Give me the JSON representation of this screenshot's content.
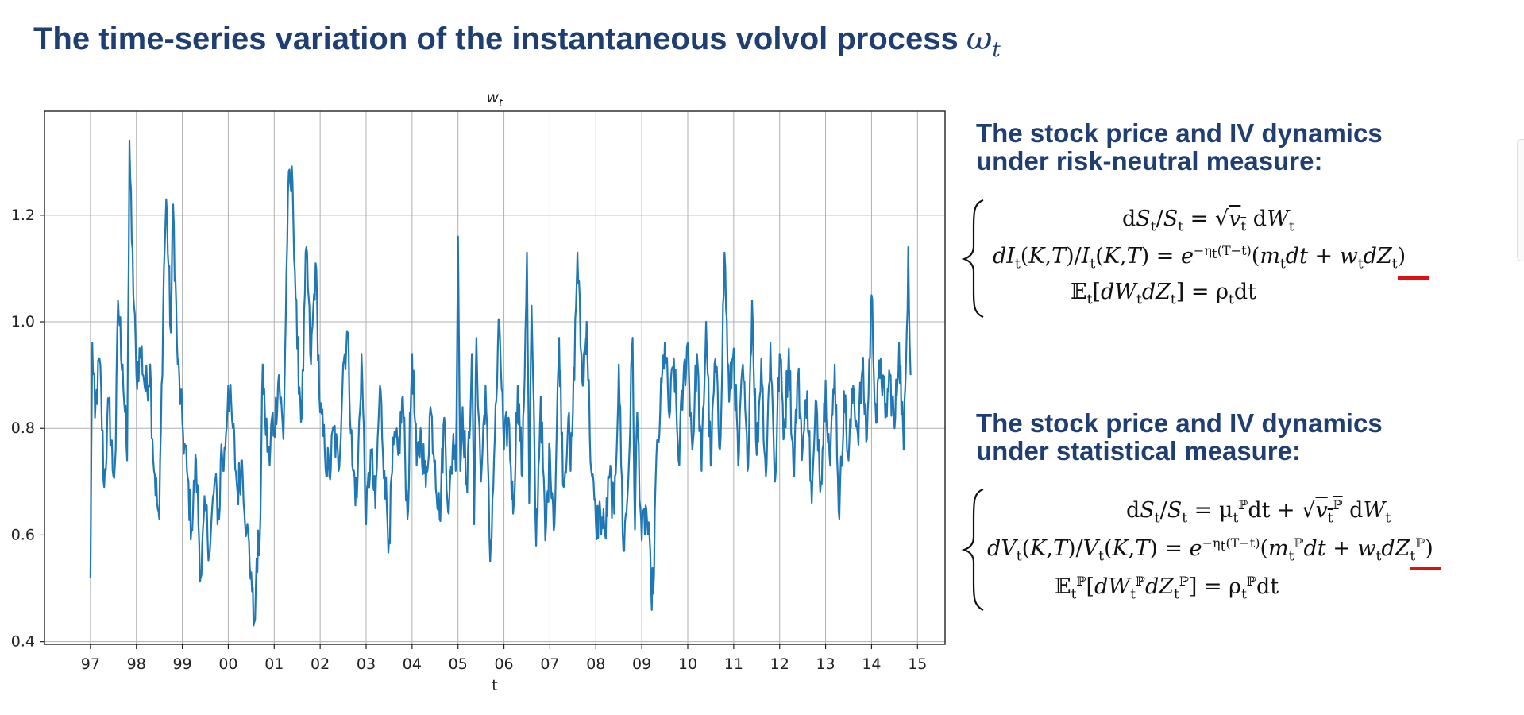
{
  "slide": {
    "title": "The time-series variation of the instantaneous volvol process",
    "title_symbol": "ω",
    "title_symbol_sub": "t"
  },
  "chart_data": {
    "type": "line",
    "title": "w_t",
    "title_display": "w",
    "title_sub": "t",
    "xlabel": "t",
    "ylabel": "",
    "ylim": [
      0.395,
      1.395
    ],
    "xlim": [
      1996.0,
      2015.6
    ],
    "yticks": [
      "0.4",
      "0.6",
      "0.8",
      "1.0",
      "1.2"
    ],
    "xticks": [
      "97",
      "98",
      "99",
      "00",
      "01",
      "02",
      "03",
      "04",
      "05",
      "06",
      "07",
      "08",
      "09",
      "10",
      "11",
      "12",
      "13",
      "14",
      "15"
    ],
    "grid": true,
    "legend": "none",
    "color": "#1f77b4",
    "series": [
      {
        "anchors": [
          [
            1997.0,
            0.52
          ],
          [
            1997.04,
            0.96
          ],
          [
            1997.1,
            0.82
          ],
          [
            1997.2,
            0.93
          ],
          [
            1997.3,
            0.69
          ],
          [
            1997.4,
            0.85
          ],
          [
            1997.5,
            0.71
          ],
          [
            1997.55,
            0.76
          ],
          [
            1997.6,
            1.04
          ],
          [
            1997.7,
            0.92
          ],
          [
            1997.8,
            0.74
          ],
          [
            1997.85,
            1.34
          ],
          [
            1997.9,
            1.15
          ],
          [
            1998.0,
            0.9
          ],
          [
            1998.1,
            0.95
          ],
          [
            1998.2,
            0.87
          ],
          [
            1998.3,
            0.92
          ],
          [
            1998.35,
            0.78
          ],
          [
            1998.45,
            0.66
          ],
          [
            1998.5,
            0.63
          ],
          [
            1998.6,
            1.1
          ],
          [
            1998.65,
            1.23
          ],
          [
            1998.75,
            0.98
          ],
          [
            1998.8,
            1.22
          ],
          [
            1998.9,
            0.92
          ],
          [
            1999.0,
            0.81
          ],
          [
            1999.1,
            0.72
          ],
          [
            1999.2,
            0.61
          ],
          [
            1999.3,
            0.74
          ],
          [
            1999.4,
            0.52
          ],
          [
            1999.5,
            0.65
          ],
          [
            1999.6,
            0.57
          ],
          [
            1999.7,
            0.7
          ],
          [
            1999.8,
            0.63
          ],
          [
            1999.85,
            0.77
          ],
          [
            1999.9,
            0.72
          ],
          [
            2000.0,
            0.88
          ],
          [
            2000.1,
            0.8
          ],
          [
            2000.2,
            0.68
          ],
          [
            2000.3,
            0.74
          ],
          [
            2000.4,
            0.61
          ],
          [
            2000.5,
            0.53
          ],
          [
            2000.55,
            0.43
          ],
          [
            2000.6,
            0.5
          ],
          [
            2000.7,
            0.63
          ],
          [
            2000.75,
            0.92
          ],
          [
            2000.8,
            0.82
          ],
          [
            2000.9,
            0.73
          ],
          [
            2000.95,
            0.82
          ],
          [
            2001.0,
            0.8
          ],
          [
            2001.1,
            0.9
          ],
          [
            2001.2,
            0.78
          ],
          [
            2001.3,
            1.24
          ],
          [
            2001.4,
            1.26
          ],
          [
            2001.5,
            0.95
          ],
          [
            2001.6,
            0.82
          ],
          [
            2001.7,
            1.14
          ],
          [
            2001.8,
            0.92
          ],
          [
            2001.9,
            1.11
          ],
          [
            2002.0,
            0.83
          ],
          [
            2002.1,
            0.76
          ],
          [
            2002.2,
            0.71
          ],
          [
            2002.3,
            0.8
          ],
          [
            2002.4,
            0.72
          ],
          [
            2002.5,
            0.92
          ],
          [
            2002.6,
            0.98
          ],
          [
            2002.7,
            0.73
          ],
          [
            2002.8,
            0.67
          ],
          [
            2002.9,
            0.94
          ],
          [
            2003.0,
            0.62
          ],
          [
            2003.1,
            0.76
          ],
          [
            2003.2,
            0.65
          ],
          [
            2003.3,
            0.88
          ],
          [
            2003.4,
            0.72
          ],
          [
            2003.5,
            0.59
          ],
          [
            2003.6,
            0.77
          ],
          [
            2003.7,
            0.75
          ],
          [
            2003.8,
            0.86
          ],
          [
            2003.9,
            0.63
          ],
          [
            2004.0,
            0.94
          ],
          [
            2004.1,
            0.73
          ],
          [
            2004.2,
            0.79
          ],
          [
            2004.3,
            0.69
          ],
          [
            2004.4,
            0.84
          ],
          [
            2004.5,
            0.74
          ],
          [
            2004.6,
            0.63
          ],
          [
            2004.7,
            0.82
          ],
          [
            2004.8,
            0.64
          ],
          [
            2004.9,
            0.79
          ],
          [
            2004.95,
            0.72
          ],
          [
            2005.0,
            1.16
          ],
          [
            2005.05,
            0.72
          ],
          [
            2005.1,
            0.84
          ],
          [
            2005.2,
            0.68
          ],
          [
            2005.3,
            0.94
          ],
          [
            2005.35,
            0.62
          ],
          [
            2005.4,
            0.97
          ],
          [
            2005.5,
            0.7
          ],
          [
            2005.6,
            0.88
          ],
          [
            2005.7,
            0.55
          ],
          [
            2005.8,
            0.78
          ],
          [
            2005.9,
            1.0
          ],
          [
            2006.0,
            0.76
          ],
          [
            2006.1,
            0.82
          ],
          [
            2006.2,
            0.64
          ],
          [
            2006.3,
            0.88
          ],
          [
            2006.4,
            0.71
          ],
          [
            2006.5,
            1.13
          ],
          [
            2006.55,
            0.66
          ],
          [
            2006.6,
            1.03
          ],
          [
            2006.7,
            0.58
          ],
          [
            2006.8,
            0.86
          ],
          [
            2006.9,
            0.59
          ],
          [
            2007.0,
            0.76
          ],
          [
            2007.1,
            0.62
          ],
          [
            2007.2,
            0.97
          ],
          [
            2007.3,
            0.69
          ],
          [
            2007.4,
            0.82
          ],
          [
            2007.45,
            0.72
          ],
          [
            2007.5,
            0.83
          ],
          [
            2007.6,
            1.13
          ],
          [
            2007.7,
            0.89
          ],
          [
            2007.8,
            1.0
          ],
          [
            2007.9,
            0.72
          ],
          [
            2008.0,
            0.62
          ],
          [
            2008.1,
            0.64
          ],
          [
            2008.2,
            0.6
          ],
          [
            2008.3,
            0.71
          ],
          [
            2008.4,
            0.64
          ],
          [
            2008.5,
            0.92
          ],
          [
            2008.6,
            0.57
          ],
          [
            2008.7,
            0.69
          ],
          [
            2008.8,
            0.97
          ],
          [
            2008.85,
            0.61
          ],
          [
            2008.9,
            0.83
          ],
          [
            2009.0,
            0.59
          ],
          [
            2009.1,
            0.65
          ],
          [
            2009.2,
            0.51
          ],
          [
            2009.25,
            0.49
          ],
          [
            2009.3,
            0.7
          ],
          [
            2009.4,
            0.83
          ],
          [
            2009.5,
            0.96
          ],
          [
            2009.6,
            0.82
          ],
          [
            2009.7,
            0.93
          ],
          [
            2009.8,
            0.74
          ],
          [
            2009.9,
            0.88
          ],
          [
            2010.0,
            0.96
          ],
          [
            2010.1,
            0.76
          ],
          [
            2010.2,
            0.94
          ],
          [
            2010.3,
            0.72
          ],
          [
            2010.4,
            1.0
          ],
          [
            2010.5,
            0.73
          ],
          [
            2010.6,
            0.93
          ],
          [
            2010.7,
            0.76
          ],
          [
            2010.8,
            1.13
          ],
          [
            2010.9,
            0.85
          ],
          [
            2011.0,
            0.95
          ],
          [
            2011.1,
            0.73
          ],
          [
            2011.2,
            0.92
          ],
          [
            2011.3,
            0.72
          ],
          [
            2011.4,
            1.04
          ],
          [
            2011.5,
            0.75
          ],
          [
            2011.6,
            0.93
          ],
          [
            2011.7,
            0.71
          ],
          [
            2011.8,
            0.96
          ],
          [
            2011.9,
            0.7
          ],
          [
            2012.0,
            0.94
          ],
          [
            2012.1,
            0.79
          ],
          [
            2012.2,
            0.95
          ],
          [
            2012.3,
            0.72
          ],
          [
            2012.4,
            0.9
          ],
          [
            2012.5,
            0.76
          ],
          [
            2012.6,
            0.87
          ],
          [
            2012.7,
            0.66
          ],
          [
            2012.8,
            0.85
          ],
          [
            2012.9,
            0.7
          ],
          [
            2013.0,
            0.89
          ],
          [
            2013.1,
            0.73
          ],
          [
            2013.2,
            0.92
          ],
          [
            2013.3,
            0.63
          ],
          [
            2013.4,
            0.87
          ],
          [
            2013.5,
            0.74
          ],
          [
            2013.6,
            0.88
          ],
          [
            2013.7,
            0.79
          ],
          [
            2013.8,
            0.91
          ],
          [
            2013.9,
            0.78
          ],
          [
            2014.0,
            1.05
          ],
          [
            2014.1,
            0.81
          ],
          [
            2014.2,
            0.93
          ],
          [
            2014.3,
            0.82
          ],
          [
            2014.4,
            0.9
          ],
          [
            2014.5,
            0.8
          ],
          [
            2014.6,
            0.96
          ],
          [
            2014.7,
            0.76
          ],
          [
            2014.75,
            0.92
          ],
          [
            2014.8,
            1.14
          ],
          [
            2014.85,
            0.9
          ]
        ]
      }
    ]
  },
  "panel": {
    "rn_title_1": "The stock price and IV dynamics",
    "rn_title_2": "under risk-neutral measure:",
    "stat_title_1": "The stock price and IV dynamics",
    "stat_title_2": "under statistical measure:"
  },
  "colors": {
    "title": "#1f3f73",
    "line": "#1f77b4",
    "underline": "#e01010"
  }
}
